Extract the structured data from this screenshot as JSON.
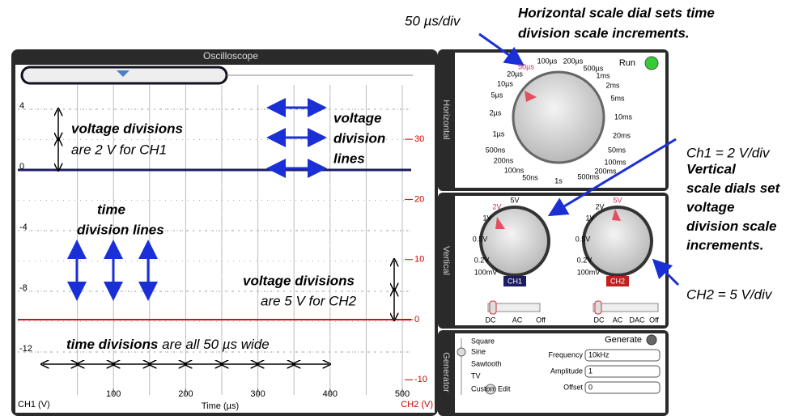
{
  "annotations": {
    "time_per_div": "50 µs/div",
    "horizontal_note": [
      "Horizontal  scale dial sets time",
      "division scale increments."
    ],
    "ch1_note": "Ch1 = 2 V/div",
    "vertical_note": [
      "Vertical",
      "scale dials set",
      "voltage",
      "division scale",
      "increments."
    ],
    "ch2_note": "CH2 = 5 V/div",
    "volt_div_ch1": [
      "voltage divisions",
      "are 2  V for CH1"
    ],
    "volt_div_lines": [
      "voltage",
      "division",
      "lines"
    ],
    "time_div_lines": [
      "time",
      "division lines"
    ],
    "volt_div_ch2": [
      "voltage divisions",
      "are 5 V for CH2"
    ],
    "time_divs": [
      "time divisions",
      "are all 50 µs wide"
    ]
  },
  "scope": {
    "title": "Oscilloscope",
    "y_label": "CH1 (V)",
    "y2_label": "CH2 (V)",
    "x_label": "Time (µs)",
    "yticks": [
      4,
      0,
      -4,
      -8,
      -12
    ],
    "y2ticks": [
      30,
      20,
      10,
      0,
      -10
    ],
    "xticks": [
      100,
      200,
      300,
      400,
      500
    ]
  },
  "horizontal": {
    "tab": "Horizontal",
    "run": "Run",
    "dial": [
      "50µs",
      "100µs",
      "200µs",
      "500µs",
      "1ms",
      "2ms",
      "5ms",
      "10ms",
      "20ms",
      "50ms",
      "100ms",
      "200ms",
      "500ms",
      "1s",
      "50ns",
      "100ns",
      "200ns",
      "500ns",
      "1µs",
      "2µs",
      "5µs",
      "10µs",
      "20µs"
    ]
  },
  "vertical": {
    "tab": "Vertical",
    "ch1_dial": [
      "5V",
      "2V",
      "1V",
      "0.5V",
      "0.2V",
      "100mV"
    ],
    "ch2_dial": [
      "5V",
      "2V",
      "1V",
      "0.5V",
      "0.2V",
      "100mV"
    ],
    "ch1": "CH1",
    "ch2": "CH2",
    "ch1_coupling": [
      "DC",
      "AC",
      "Off"
    ],
    "ch2_coupling": [
      "DC",
      "AC",
      "DAC",
      "Off"
    ]
  },
  "generator": {
    "tab": "Generator",
    "waves": [
      "Square",
      "Sine",
      "Sawtooth",
      "TV",
      "Custom"
    ],
    "edit": "Edit",
    "generate": "Generate",
    "frequency_label": "Frequency",
    "frequency": "10kHz",
    "amplitude_label": "Amplitude",
    "amplitude": "1",
    "offset_label": "Offset",
    "offset": "0"
  }
}
